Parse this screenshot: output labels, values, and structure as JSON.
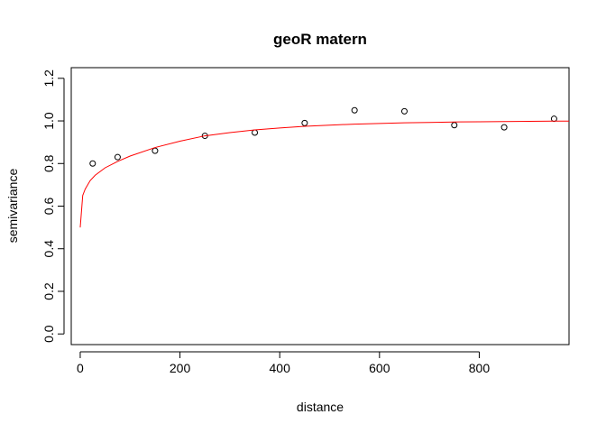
{
  "chart_data": {
    "type": "scatter",
    "title": "geoR matern",
    "xlabel": "distance",
    "ylabel": "semivariance",
    "xlim": [
      -18,
      980
    ],
    "ylim": [
      -0.05,
      1.25
    ],
    "x_ticks": [
      0,
      200,
      400,
      600,
      800
    ],
    "y_ticks": [
      0.0,
      0.2,
      0.4,
      0.6,
      0.8,
      1.0,
      1.2
    ],
    "x_tick_labels": [
      "0",
      "200",
      "400",
      "600",
      "800"
    ],
    "y_tick_labels": [
      "0.0",
      "0.2",
      "0.4",
      "0.6",
      "0.8",
      "1.0",
      "1.2"
    ],
    "grid": false,
    "series": [
      {
        "kind": "points",
        "marker": "open-circle",
        "color": "#000000",
        "x": [
          25,
          75,
          150,
          250,
          350,
          450,
          550,
          650,
          750,
          850,
          950
        ],
        "y": [
          0.8,
          0.83,
          0.86,
          0.93,
          0.945,
          0.99,
          1.05,
          1.045,
          0.98,
          0.97,
          1.01
        ]
      },
      {
        "kind": "line",
        "color": "#ff0000",
        "x": [
          0,
          5,
          10,
          20,
          30,
          50,
          75,
          100,
          150,
          200,
          250,
          300,
          350,
          400,
          450,
          500,
          550,
          600,
          650,
          700,
          750,
          800,
          850,
          900,
          950,
          980
        ],
        "y": [
          0.5,
          0.65,
          0.68,
          0.72,
          0.745,
          0.78,
          0.81,
          0.835,
          0.875,
          0.905,
          0.93,
          0.945,
          0.958,
          0.967,
          0.975,
          0.98,
          0.985,
          0.988,
          0.991,
          0.993,
          0.995,
          0.996,
          0.997,
          0.998,
          0.999,
          0.999
        ]
      }
    ]
  }
}
